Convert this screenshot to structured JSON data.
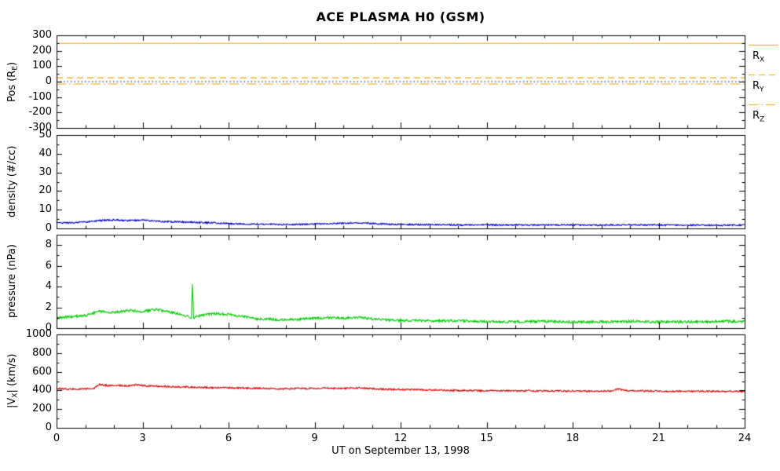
{
  "title": "ACE PLASMA H0 (GSM)",
  "xlabel": "UT on September 13, 1998",
  "x_axis": {
    "min": 0,
    "max": 24,
    "major_ticks": [
      0,
      3,
      6,
      9,
      12,
      15,
      18,
      21,
      24
    ],
    "minor_step": 1
  },
  "legend": {
    "color": "#F5A300",
    "items": [
      {
        "pre": "R",
        "sub": "X",
        "style": "solid"
      },
      {
        "pre": "R",
        "sub": "Y",
        "style": "dashed"
      },
      {
        "pre": "R",
        "sub": "Z",
        "style": "dashdot"
      }
    ]
  },
  "chart_data": [
    {
      "type": "line",
      "name": "spacecraft-position",
      "ylabel_pre": "Pos (R",
      "ylabel_sub": "E",
      "ylabel_post": ")",
      "ylim": [
        -300,
        300
      ],
      "yticks": [
        -300,
        -200,
        -100,
        0,
        100,
        200,
        300
      ],
      "y_minor_step": 50,
      "series": [
        {
          "name": "R_X",
          "style": "solid",
          "color": "#F5A300",
          "constant": 248
        },
        {
          "name": "R_Y",
          "style": "dashed",
          "color": "#F5A300",
          "constant": 25
        },
        {
          "name": "R_Z",
          "style": "dashdot",
          "color": "#F5A300",
          "constant": -15
        },
        {
          "name": "zero-reference",
          "style": "dotted",
          "color": "#000080",
          "constant": 0
        }
      ]
    },
    {
      "type": "line",
      "name": "proton-density",
      "ylabel_pre": "density (#/cc)",
      "ylabel_sub": "",
      "ylabel_post": "",
      "ylim": [
        0,
        50
      ],
      "yticks": [
        0,
        10,
        20,
        30,
        40,
        50
      ],
      "y_minor_step": 5,
      "series": [
        {
          "name": "density",
          "style": "solid",
          "color": "#0000C8",
          "noise": 0.4,
          "points": [
            [
              0,
              3.2
            ],
            [
              0.5,
              3.0
            ],
            [
              1,
              3.4
            ],
            [
              1.5,
              4.2
            ],
            [
              2,
              4.6
            ],
            [
              2.5,
              4.1
            ],
            [
              3,
              4.6
            ],
            [
              3.5,
              3.8
            ],
            [
              4,
              3.6
            ],
            [
              4.5,
              3.4
            ],
            [
              5,
              3.2
            ],
            [
              5.5,
              3.0
            ],
            [
              6,
              2.6
            ],
            [
              6.5,
              2.4
            ],
            [
              7,
              2.3
            ],
            [
              7.5,
              2.2
            ],
            [
              8,
              2.1
            ],
            [
              8.5,
              2.2
            ],
            [
              9,
              2.4
            ],
            [
              9.5,
              2.6
            ],
            [
              10,
              2.8
            ],
            [
              10.5,
              3.0
            ],
            [
              11,
              2.6
            ],
            [
              11.5,
              2.3
            ],
            [
              12,
              2.2
            ],
            [
              12.5,
              2.1
            ],
            [
              13,
              2.0
            ],
            [
              13.5,
              2.0
            ],
            [
              14,
              1.9
            ],
            [
              15,
              1.9
            ],
            [
              16,
              1.8
            ],
            [
              17,
              1.9
            ],
            [
              18,
              1.8
            ],
            [
              19,
              1.8
            ],
            [
              20,
              1.9
            ],
            [
              21,
              1.8
            ],
            [
              22,
              1.8
            ],
            [
              23,
              1.7
            ],
            [
              24,
              1.8
            ]
          ]
        }
      ]
    },
    {
      "type": "line",
      "name": "ram-pressure",
      "ylabel_pre": "pressure (nPa)",
      "ylabel_sub": "",
      "ylabel_post": "",
      "ylim": [
        0,
        9
      ],
      "yticks": [
        0,
        2,
        4,
        6,
        8
      ],
      "y_minor_step": 1,
      "series": [
        {
          "name": "pressure",
          "style": "solid",
          "color": "#00CC00",
          "noise": 0.12,
          "points": [
            [
              0,
              1.0
            ],
            [
              0.5,
              1.1
            ],
            [
              1,
              1.2
            ],
            [
              1.5,
              1.6
            ],
            [
              2,
              1.5
            ],
            [
              2.5,
              1.7
            ],
            [
              3,
              1.6
            ],
            [
              3.5,
              1.8
            ],
            [
              4,
              1.5
            ],
            [
              4.4,
              1.3
            ],
            [
              4.7,
              1.0
            ],
            [
              4.74,
              4.2
            ],
            [
              4.78,
              1.0
            ],
            [
              5,
              1.2
            ],
            [
              5.5,
              1.4
            ],
            [
              6,
              1.3
            ],
            [
              6.5,
              1.1
            ],
            [
              7,
              0.9
            ],
            [
              7.5,
              0.85
            ],
            [
              8,
              0.8
            ],
            [
              8.5,
              0.85
            ],
            [
              9,
              0.95
            ],
            [
              9.5,
              1.0
            ],
            [
              10,
              0.95
            ],
            [
              10.5,
              1.05
            ],
            [
              11,
              0.9
            ],
            [
              11.5,
              0.8
            ],
            [
              12,
              0.75
            ],
            [
              13,
              0.7
            ],
            [
              14,
              0.7
            ],
            [
              15,
              0.65
            ],
            [
              16,
              0.6
            ],
            [
              17,
              0.65
            ],
            [
              18,
              0.6
            ],
            [
              19,
              0.6
            ],
            [
              20,
              0.65
            ],
            [
              21,
              0.6
            ],
            [
              22,
              0.6
            ],
            [
              23,
              0.65
            ],
            [
              24,
              0.65
            ]
          ]
        }
      ]
    },
    {
      "type": "line",
      "name": "solar-wind-speed",
      "ylabel_pre": "|V",
      "ylabel_sub": "X",
      "ylabel_post": "| (km/s)",
      "ylim": [
        0,
        1000
      ],
      "yticks": [
        0,
        200,
        400,
        600,
        800,
        1000
      ],
      "y_minor_step": 100,
      "series": [
        {
          "name": "vx-magnitude",
          "style": "solid",
          "color": "#DD0000",
          "noise": 9,
          "points": [
            [
              0,
              420
            ],
            [
              0.5,
              415
            ],
            [
              1,
              418
            ],
            [
              1.3,
              420
            ],
            [
              1.5,
              465
            ],
            [
              1.8,
              450
            ],
            [
              2,
              455
            ],
            [
              2.5,
              450
            ],
            [
              2.8,
              460
            ],
            [
              3,
              450
            ],
            [
              3.5,
              445
            ],
            [
              4,
              440
            ],
            [
              4.5,
              438
            ],
            [
              5,
              432
            ],
            [
              5.5,
              430
            ],
            [
              6,
              428
            ],
            [
              6.5,
              425
            ],
            [
              7,
              422
            ],
            [
              7.5,
              420
            ],
            [
              8,
              418
            ],
            [
              8.5,
              420
            ],
            [
              9,
              423
            ],
            [
              9.5,
              425
            ],
            [
              10,
              422
            ],
            [
              10.5,
              428
            ],
            [
              11,
              420
            ],
            [
              11.5,
              412
            ],
            [
              12,
              410
            ],
            [
              12.5,
              408
            ],
            [
              13,
              405
            ],
            [
              13.5,
              402
            ],
            [
              14,
              400
            ],
            [
              15,
              398
            ],
            [
              16,
              396
            ],
            [
              17,
              395
            ],
            [
              18,
              394
            ],
            [
              19,
              392
            ],
            [
              19.4,
              395
            ],
            [
              19.6,
              418
            ],
            [
              19.8,
              400
            ],
            [
              20,
              396
            ],
            [
              21,
              393
            ],
            [
              22,
              392
            ],
            [
              23,
              390
            ],
            [
              24,
              390
            ]
          ]
        }
      ]
    }
  ]
}
